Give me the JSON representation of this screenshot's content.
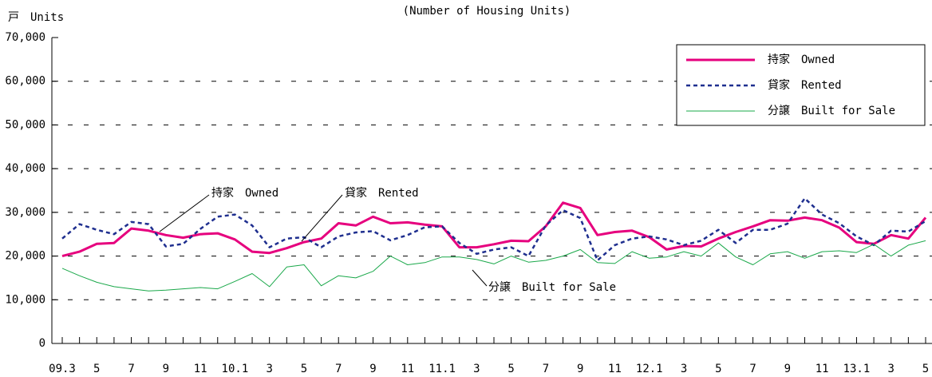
{
  "chart_data": {
    "type": "line",
    "title": "(Number of Housing Units)",
    "y_label": "戸　Units",
    "categories": [
      "09.3",
      null,
      "5",
      null,
      "7",
      null,
      "9",
      null,
      "11",
      null,
      "10.1",
      null,
      "3",
      null,
      "5",
      null,
      "7",
      null,
      "9",
      null,
      "11",
      null,
      "11.1",
      null,
      "3",
      null,
      "5",
      null,
      "7",
      null,
      "9",
      null,
      "11",
      null,
      "12.1",
      null,
      "3",
      null,
      "5",
      null,
      "7",
      null,
      "9",
      null,
      "11",
      null,
      "13.1",
      null,
      "3",
      null,
      "5"
    ],
    "series": [
      {
        "name": "持家　Owned",
        "color": "#e6007e",
        "style": "solid",
        "values": [
          20000,
          21000,
          22800,
          23000,
          26300,
          25800,
          24800,
          24200,
          25000,
          25200,
          23800,
          21000,
          20700,
          21800,
          23200,
          24000,
          27500,
          27000,
          29000,
          27500,
          27700,
          27200,
          26800,
          22000,
          22000,
          22700,
          23500,
          23400,
          26800,
          32200,
          31000,
          24800,
          25500,
          25800,
          24300,
          21500,
          22300,
          22200,
          24000,
          25500,
          26800,
          28200,
          28100,
          28800,
          28200,
          26500,
          23200,
          22800,
          24800,
          24000,
          28800
        ]
      },
      {
        "name": "貸家　Rented",
        "color": "#1f2f8f",
        "style": "dashed",
        "values": [
          24000,
          27300,
          26000,
          25000,
          27800,
          27300,
          22200,
          22800,
          26200,
          29000,
          29500,
          27000,
          22000,
          24000,
          24300,
          22000,
          24500,
          25400,
          25700,
          23600,
          24800,
          26600,
          26800,
          23000,
          20500,
          21500,
          22000,
          20000,
          27000,
          30500,
          28700,
          19000,
          22500,
          24000,
          24500,
          23800,
          22500,
          23500,
          26000,
          23000,
          26000,
          26000,
          27400,
          33200,
          29500,
          27500,
          24500,
          22500,
          25800,
          25600,
          28000
        ]
      },
      {
        "name": "分譲　Built for Sale",
        "color": "#1aa84a",
        "style": "thin",
        "values": [
          17200,
          15500,
          14000,
          13000,
          12500,
          12000,
          12200,
          12500,
          12800,
          12500,
          14200,
          16000,
          13000,
          17500,
          18000,
          13200,
          15500,
          15000,
          16500,
          20000,
          18000,
          18500,
          19800,
          19800,
          19200,
          18200,
          20000,
          18600,
          19000,
          20000,
          21500,
          18500,
          18300,
          21000,
          19500,
          19800,
          21000,
          20000,
          23000,
          19800,
          18000,
          20500,
          21000,
          19500,
          21000,
          21200,
          20800,
          22700,
          20000,
          22500,
          23500
        ]
      }
    ],
    "annotations": [
      "持家　Owned",
      "貸家　Rented",
      "分譲　Built for Sale"
    ],
    "ylim": [
      0,
      70000
    ],
    "yticks": [
      0,
      {
        "value": 10000,
        "label": "10,000"
      },
      {
        "value": 20000,
        "label": "20,000"
      },
      {
        "value": 30000,
        "label": "30,000"
      },
      {
        "value": 40000,
        "label": "40,000"
      },
      {
        "value": 50000,
        "label": "50,000"
      },
      {
        "value": 60000,
        "label": "60,000"
      },
      {
        "value": 70000,
        "label": "70,000"
      }
    ],
    "grid": true,
    "legend": "top-right"
  }
}
